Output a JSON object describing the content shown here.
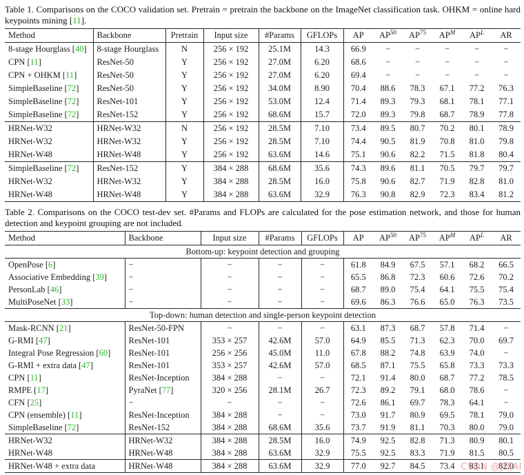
{
  "colors": {
    "text": "#1c1c1c",
    "citation_green": "#29b829",
    "border": "#262626",
    "watermark_pink": "#de6c6c"
  },
  "watermark": {
    "text": "CSDN @J佳AI"
  },
  "table1": {
    "caption": {
      "pre": "Table 1. Comparisons on the COCO validation set. Pretrain = pretrain the backbone on the ImageNet classification task. OHKM = online hard keypoints mining [",
      "cite": "11",
      "post": "]."
    },
    "headers": [
      {
        "t": "Method"
      },
      {
        "t": "Backbone"
      },
      {
        "t": "Pretrain"
      },
      {
        "t": "Input size"
      },
      {
        "t": "#Params"
      },
      {
        "t": "GFLOPs"
      },
      {
        "t": "AP"
      },
      {
        "t": "AP",
        "sup": "50"
      },
      {
        "t": "AP",
        "sup": "75"
      },
      {
        "t": "AP",
        "sup": "M",
        "si": true
      },
      {
        "t": "AP",
        "sup": "L",
        "si": true
      },
      {
        "t": "AR"
      }
    ],
    "groups": [
      {
        "rows": [
          {
            "cells": [
              {
                "t": "8-stage Hourglass",
                "c": "40"
              },
              "8-stage Hourglass",
              "N",
              "256 × 192",
              "25.1M",
              "14.3",
              "66.9",
              "−",
              "−",
              "−",
              "−",
              "−"
            ]
          },
          {
            "cells": [
              {
                "t": "CPN",
                "c": "11"
              },
              "ResNet-50",
              "Y",
              "256 × 192",
              "27.0M",
              "6.20",
              "68.6",
              "−",
              "−",
              "−",
              "−",
              "−"
            ]
          },
          {
            "cells": [
              {
                "t": "CPN + OHKM",
                "c": "11"
              },
              "ResNet-50",
              "Y",
              "256 × 192",
              "27.0M",
              "6.20",
              "69.4",
              "−",
              "−",
              "−",
              "−",
              "−"
            ]
          },
          {
            "cells": [
              {
                "t": "SimpleBaseline",
                "c": "72"
              },
              "ResNet-50",
              "Y",
              "256 × 192",
              "34.0M",
              "8.90",
              "70.4",
              "88.6",
              "78.3",
              "67.1",
              "77.2",
              "76.3"
            ]
          },
          {
            "cells": [
              {
                "t": "SimpleBaseline",
                "c": "72"
              },
              "ResNet-101",
              "Y",
              "256 × 192",
              "53.0M",
              "12.4",
              "71.4",
              "89.3",
              "79.3",
              "68.1",
              "78.1",
              "77.1"
            ]
          },
          {
            "cells": [
              {
                "t": "SimpleBaseline",
                "c": "72"
              },
              "ResNet-152",
              "Y",
              "256 × 192",
              "68.6M",
              "15.7",
              "72.0",
              "89.3",
              "79.8",
              "68.7",
              "78.9",
              "77.8"
            ]
          }
        ]
      },
      {
        "rows": [
          {
            "cells": [
              "HRNet-W32",
              "HRNet-W32",
              "N",
              "256 × 192",
              "28.5M",
              "7.10",
              "73.4",
              "89.5",
              "80.7",
              "70.2",
              "80.1",
              "78.9"
            ]
          },
          {
            "cells": [
              "HRNet-W32",
              "HRNet-W32",
              "Y",
              "256 × 192",
              "28.5M",
              "7.10",
              "74.4",
              "90.5",
              "81.9",
              "70.8",
              "81.0",
              "79.8"
            ]
          },
          {
            "cells": [
              "HRNet-W48",
              "HRNet-W48",
              "Y",
              "256 × 192",
              "63.6M",
              "14.6",
              "75.1",
              "90.6",
              "82.2",
              "71.5",
              "81.8",
              "80.4"
            ]
          }
        ]
      },
      {
        "rows": [
          {
            "cells": [
              {
                "t": "SimpleBaseline",
                "c": "72"
              },
              "ResNet-152",
              "Y",
              "384 × 288",
              "68.6M",
              "35.6",
              "74.3",
              "89.6",
              "81.1",
              "70.5",
              "79.7",
              "79.7"
            ]
          },
          {
            "cells": [
              "HRNet-W32",
              "HRNet-W32",
              "Y",
              "384 × 288",
              "28.5M",
              "16.0",
              "75.8",
              "90.6",
              "82.7",
              "71.9",
              "82.8",
              "81.0"
            ]
          },
          {
            "cells": [
              "HRNet-W48",
              "HRNet-W48",
              "Y",
              "384 × 288",
              "63.6M",
              "32.9",
              "76.3",
              "90.8",
              "82.9",
              "72.3",
              "83.4",
              "81.2"
            ],
            "bold_from": 6
          }
        ]
      }
    ]
  },
  "table2": {
    "caption": "Table 2. Comparisons on the COCO test-dev set. #Params and FLOPs are calculated for the pose estimation network, and those for human detection and keypoint grouping are not included.",
    "headers": [
      {
        "t": "Method"
      },
      {
        "t": "Backbone"
      },
      {
        "t": "Input size"
      },
      {
        "t": "#Params"
      },
      {
        "t": "GFLOPs"
      },
      {
        "t": "AP"
      },
      {
        "t": "AP",
        "sup": "50"
      },
      {
        "t": "AP",
        "sup": "75"
      },
      {
        "t": "AP",
        "sup": "M",
        "si": true
      },
      {
        "t": "AP",
        "sup": "L",
        "si": true
      },
      {
        "t": "AR"
      }
    ],
    "groups": [
      {
        "section": "Bottom-up: keypoint detection and grouping"
      },
      {
        "rows": [
          {
            "cells": [
              {
                "t": "OpenPose",
                "c": "6"
              },
              "−",
              "−",
              "−",
              "−",
              "61.8",
              "84.9",
              "67.5",
              "57.1",
              "68.2",
              "66.5"
            ]
          },
          {
            "cells": [
              {
                "t": "Associative Embedding",
                "c": "39"
              },
              "−",
              "−",
              "−",
              "−",
              "65.5",
              "86.8",
              "72.3",
              "60.6",
              "72.6",
              "70.2"
            ]
          },
          {
            "cells": [
              {
                "t": "PersonLab",
                "c": "46"
              },
              "−",
              "−",
              "−",
              "−",
              "68.7",
              "89.0",
              "75.4",
              "64.1",
              "75.5",
              "75.4"
            ]
          },
          {
            "cells": [
              {
                "t": "MultiPoseNet",
                "c": "33"
              },
              "−",
              "−",
              "−",
              "−",
              "69.6",
              "86.3",
              "76.6",
              "65.0",
              "76.3",
              "73.5"
            ]
          }
        ]
      },
      {
        "section": "Top-down: human detection and single-person keypoint detection"
      },
      {
        "rows": [
          {
            "cells": [
              {
                "t": "Mask-RCNN",
                "c": "21"
              },
              "ResNet-50-FPN",
              "−",
              "−",
              "−",
              "63.1",
              "87.3",
              "68.7",
              "57.8",
              "71.4",
              "−"
            ]
          },
          {
            "cells": [
              {
                "t": "G-RMI",
                "c": "47"
              },
              "ResNet-101",
              "353 × 257",
              "42.6M",
              "57.0",
              "64.9",
              "85.5",
              "71.3",
              "62.3",
              "70.0",
              "69.7"
            ]
          },
          {
            "cells": [
              {
                "t": "Integral Pose Regression",
                "c": "60"
              },
              "ResNet-101",
              "256 × 256",
              "45.0M",
              "11.0",
              "67.8",
              "88.2",
              "74.8",
              "63.9",
              "74.0",
              "−"
            ]
          },
          {
            "cells": [
              {
                "t": "G-RMI + extra data",
                "c": "47"
              },
              "ResNet-101",
              "353 × 257",
              "42.6M",
              "57.0",
              "68.5",
              "87.1",
              "75.5",
              "65.8",
              "73.3",
              "73.3"
            ]
          },
          {
            "cells": [
              {
                "t": "CPN",
                "c": "11"
              },
              "ResNet-Inception",
              "384 × 288",
              "−",
              "−",
              "72.1",
              "91.4",
              "80.0",
              "68.7",
              "77.2",
              "78.5"
            ]
          },
          {
            "cells": [
              {
                "t": "RMPE",
                "c": "17"
              },
              {
                "t": "PyraNet",
                "c": "77"
              },
              "320 × 256",
              "28.1M",
              "26.7",
              "72.3",
              "89.2",
              "79.1",
              "68.0",
              "78.6",
              "−"
            ]
          },
          {
            "cells": [
              {
                "t": "CFN",
                "c": "25"
              },
              "−",
              "−",
              "−",
              "−",
              "72.6",
              "86.1",
              "69.7",
              "78.3",
              "64.1",
              "−"
            ]
          },
          {
            "cells": [
              {
                "t": "CPN (ensemble)",
                "c": "11"
              },
              "ResNet-Inception",
              "384 × 288",
              "−",
              "−",
              "73.0",
              "91.7",
              "80.9",
              "69.5",
              "78.1",
              "79.0"
            ]
          },
          {
            "cells": [
              {
                "t": "SimpleBaseline",
                "c": "72"
              },
              "ResNet-152",
              "384 × 288",
              "68.6M",
              "35.6",
              "73.7",
              "91.9",
              "81.1",
              "70.3",
              "80.0",
              "79.0"
            ]
          }
        ]
      },
      {
        "rows": [
          {
            "cells": [
              "HRNet-W32",
              "HRNet-W32",
              "384 × 288",
              "28.5M",
              "16.0",
              "74.9",
              "92.5",
              "82.8",
              "71.3",
              "80.9",
              "80.1"
            ]
          },
          {
            "cells": [
              "HRNet-W48",
              "HRNet-W48",
              "384 × 288",
              "63.6M",
              "32.9",
              "75.5",
              "92.5",
              "83.3",
              "71.9",
              "81.5",
              "80.5"
            ],
            "bold_from": 5
          }
        ]
      },
      {
        "rows": [
          {
            "cells": [
              "HRNet-W48 + extra data",
              "HRNet-W48",
              "384 × 288",
              "63.6M",
              "32.9",
              "77.0",
              "92.7",
              "84.5",
              "73.4",
              "83.1",
              "82.0"
            ],
            "bold_from": 5
          }
        ]
      }
    ]
  }
}
